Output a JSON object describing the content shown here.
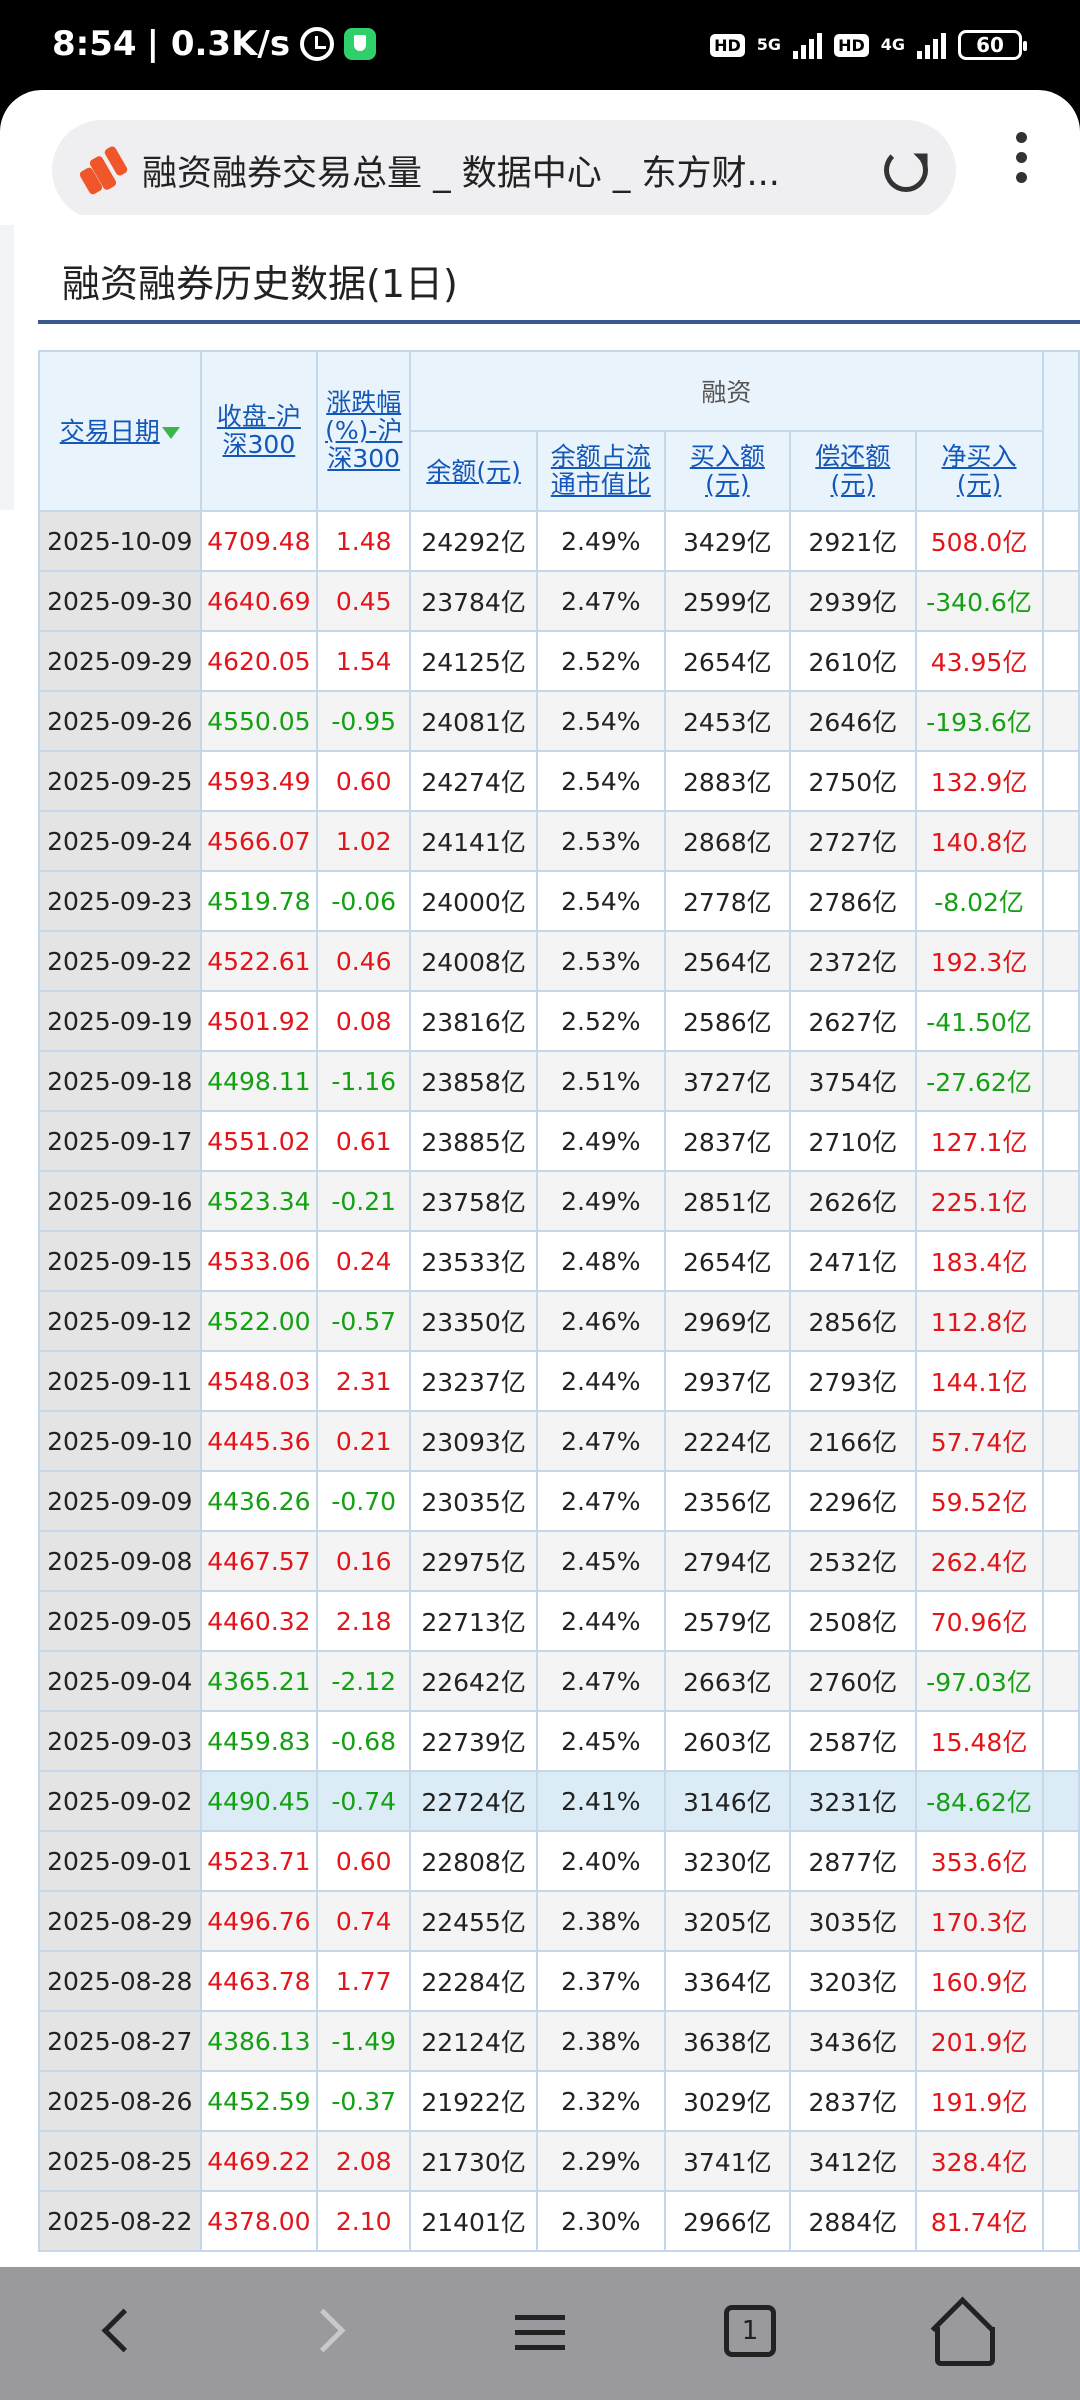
{
  "status_bar": {
    "time": "8:54",
    "speed": "| 0.3K/s",
    "hd1": "HD",
    "net1": "5G",
    "hd2": "HD",
    "net2": "4G",
    "battery": "60"
  },
  "browser": {
    "title": "融资融券交易总量 _ 数据中心 _ 东方财...",
    "tab_count": "1"
  },
  "page": {
    "section_title": "融资融券历史数据(1日)"
  },
  "table": {
    "headers": {
      "date": "交易日期",
      "close": "收盘-沪深300",
      "change": "涨跌幅(%)-沪深300",
      "group": "融资",
      "balance": "余额(元)",
      "ratio": "余额占流通市值比",
      "buy": "买入额(元)",
      "repay": "偿还额(元)",
      "net": "净买入(元)"
    },
    "rows": [
      {
        "date": "2025-10-09",
        "close": "4709.48",
        "change": "1.48",
        "balance": "24292亿",
        "ratio": "2.49%",
        "buy": "3429亿",
        "repay": "2921亿",
        "net": "508.0亿",
        "dir": "up",
        "net_dir": "up"
      },
      {
        "date": "2025-09-30",
        "close": "4640.69",
        "change": "0.45",
        "balance": "23784亿",
        "ratio": "2.47%",
        "buy": "2599亿",
        "repay": "2939亿",
        "net": "-340.6亿",
        "dir": "up",
        "net_dir": "down"
      },
      {
        "date": "2025-09-29",
        "close": "4620.05",
        "change": "1.54",
        "balance": "24125亿",
        "ratio": "2.52%",
        "buy": "2654亿",
        "repay": "2610亿",
        "net": "43.95亿",
        "dir": "up",
        "net_dir": "up"
      },
      {
        "date": "2025-09-26",
        "close": "4550.05",
        "change": "-0.95",
        "balance": "24081亿",
        "ratio": "2.54%",
        "buy": "2453亿",
        "repay": "2646亿",
        "net": "-193.6亿",
        "dir": "down",
        "net_dir": "down"
      },
      {
        "date": "2025-09-25",
        "close": "4593.49",
        "change": "0.60",
        "balance": "24274亿",
        "ratio": "2.54%",
        "buy": "2883亿",
        "repay": "2750亿",
        "net": "132.9亿",
        "dir": "up",
        "net_dir": "up"
      },
      {
        "date": "2025-09-24",
        "close": "4566.07",
        "change": "1.02",
        "balance": "24141亿",
        "ratio": "2.53%",
        "buy": "2868亿",
        "repay": "2727亿",
        "net": "140.8亿",
        "dir": "up",
        "net_dir": "up"
      },
      {
        "date": "2025-09-23",
        "close": "4519.78",
        "change": "-0.06",
        "balance": "24000亿",
        "ratio": "2.54%",
        "buy": "2778亿",
        "repay": "2786亿",
        "net": "-8.02亿",
        "dir": "down",
        "net_dir": "down"
      },
      {
        "date": "2025-09-22",
        "close": "4522.61",
        "change": "0.46",
        "balance": "24008亿",
        "ratio": "2.53%",
        "buy": "2564亿",
        "repay": "2372亿",
        "net": "192.3亿",
        "dir": "up",
        "net_dir": "up"
      },
      {
        "date": "2025-09-19",
        "close": "4501.92",
        "change": "0.08",
        "balance": "23816亿",
        "ratio": "2.52%",
        "buy": "2586亿",
        "repay": "2627亿",
        "net": "-41.50亿",
        "dir": "up",
        "net_dir": "down"
      },
      {
        "date": "2025-09-18",
        "close": "4498.11",
        "change": "-1.16",
        "balance": "23858亿",
        "ratio": "2.51%",
        "buy": "3727亿",
        "repay": "3754亿",
        "net": "-27.62亿",
        "dir": "down",
        "net_dir": "down"
      },
      {
        "date": "2025-09-17",
        "close": "4551.02",
        "change": "0.61",
        "balance": "23885亿",
        "ratio": "2.49%",
        "buy": "2837亿",
        "repay": "2710亿",
        "net": "127.1亿",
        "dir": "up",
        "net_dir": "up"
      },
      {
        "date": "2025-09-16",
        "close": "4523.34",
        "change": "-0.21",
        "balance": "23758亿",
        "ratio": "2.49%",
        "buy": "2851亿",
        "repay": "2626亿",
        "net": "225.1亿",
        "dir": "down",
        "net_dir": "up"
      },
      {
        "date": "2025-09-15",
        "close": "4533.06",
        "change": "0.24",
        "balance": "23533亿",
        "ratio": "2.48%",
        "buy": "2654亿",
        "repay": "2471亿",
        "net": "183.4亿",
        "dir": "up",
        "net_dir": "up"
      },
      {
        "date": "2025-09-12",
        "close": "4522.00",
        "change": "-0.57",
        "balance": "23350亿",
        "ratio": "2.46%",
        "buy": "2969亿",
        "repay": "2856亿",
        "net": "112.8亿",
        "dir": "down",
        "net_dir": "up"
      },
      {
        "date": "2025-09-11",
        "close": "4548.03",
        "change": "2.31",
        "balance": "23237亿",
        "ratio": "2.44%",
        "buy": "2937亿",
        "repay": "2793亿",
        "net": "144.1亿",
        "dir": "up",
        "net_dir": "up"
      },
      {
        "date": "2025-09-10",
        "close": "4445.36",
        "change": "0.21",
        "balance": "23093亿",
        "ratio": "2.47%",
        "buy": "2224亿",
        "repay": "2166亿",
        "net": "57.74亿",
        "dir": "up",
        "net_dir": "up"
      },
      {
        "date": "2025-09-09",
        "close": "4436.26",
        "change": "-0.70",
        "balance": "23035亿",
        "ratio": "2.47%",
        "buy": "2356亿",
        "repay": "2296亿",
        "net": "59.52亿",
        "dir": "down",
        "net_dir": "up"
      },
      {
        "date": "2025-09-08",
        "close": "4467.57",
        "change": "0.16",
        "balance": "22975亿",
        "ratio": "2.45%",
        "buy": "2794亿",
        "repay": "2532亿",
        "net": "262.4亿",
        "dir": "up",
        "net_dir": "up"
      },
      {
        "date": "2025-09-05",
        "close": "4460.32",
        "change": "2.18",
        "balance": "22713亿",
        "ratio": "2.44%",
        "buy": "2579亿",
        "repay": "2508亿",
        "net": "70.96亿",
        "dir": "up",
        "net_dir": "up"
      },
      {
        "date": "2025-09-04",
        "close": "4365.21",
        "change": "-2.12",
        "balance": "22642亿",
        "ratio": "2.47%",
        "buy": "2663亿",
        "repay": "2760亿",
        "net": "-97.03亿",
        "dir": "down",
        "net_dir": "down"
      },
      {
        "date": "2025-09-03",
        "close": "4459.83",
        "change": "-0.68",
        "balance": "22739亿",
        "ratio": "2.45%",
        "buy": "2603亿",
        "repay": "2587亿",
        "net": "15.48亿",
        "dir": "down",
        "net_dir": "up"
      },
      {
        "date": "2025-09-02",
        "close": "4490.45",
        "change": "-0.74",
        "balance": "22724亿",
        "ratio": "2.41%",
        "buy": "3146亿",
        "repay": "3231亿",
        "net": "-84.62亿",
        "dir": "down",
        "net_dir": "down",
        "highlight": true
      },
      {
        "date": "2025-09-01",
        "close": "4523.71",
        "change": "0.60",
        "balance": "22808亿",
        "ratio": "2.40%",
        "buy": "3230亿",
        "repay": "2877亿",
        "net": "353.6亿",
        "dir": "up",
        "net_dir": "up"
      },
      {
        "date": "2025-08-29",
        "close": "4496.76",
        "change": "0.74",
        "balance": "22455亿",
        "ratio": "2.38%",
        "buy": "3205亿",
        "repay": "3035亿",
        "net": "170.3亿",
        "dir": "up",
        "net_dir": "up"
      },
      {
        "date": "2025-08-28",
        "close": "4463.78",
        "change": "1.77",
        "balance": "22284亿",
        "ratio": "2.37%",
        "buy": "3364亿",
        "repay": "3203亿",
        "net": "160.9亿",
        "dir": "up",
        "net_dir": "up"
      },
      {
        "date": "2025-08-27",
        "close": "4386.13",
        "change": "-1.49",
        "balance": "22124亿",
        "ratio": "2.38%",
        "buy": "3638亿",
        "repay": "3436亿",
        "net": "201.9亿",
        "dir": "down",
        "net_dir": "up"
      },
      {
        "date": "2025-08-26",
        "close": "4452.59",
        "change": "-0.37",
        "balance": "21922亿",
        "ratio": "2.32%",
        "buy": "3029亿",
        "repay": "2837亿",
        "net": "191.9亿",
        "dir": "down",
        "net_dir": "up"
      },
      {
        "date": "2025-08-25",
        "close": "4469.22",
        "change": "2.08",
        "balance": "21730亿",
        "ratio": "2.29%",
        "buy": "3741亿",
        "repay": "3412亿",
        "net": "328.4亿",
        "dir": "up",
        "net_dir": "up"
      },
      {
        "date": "2025-08-22",
        "close": "4378.00",
        "change": "2.10",
        "balance": "21401亿",
        "ratio": "2.30%",
        "buy": "2966亿",
        "repay": "2884亿",
        "net": "81.74亿",
        "dir": "up",
        "net_dir": "up"
      }
    ]
  },
  "colors": {
    "up": "#e0161b",
    "down": "#13a012",
    "link": "#1357b8",
    "header_bg": "#e9f3fc"
  },
  "icons": {
    "back": "chevron-left-icon",
    "forward": "chevron-right-icon",
    "menu": "hamburger-icon",
    "tabs": "tabs-icon",
    "home": "home-icon"
  }
}
